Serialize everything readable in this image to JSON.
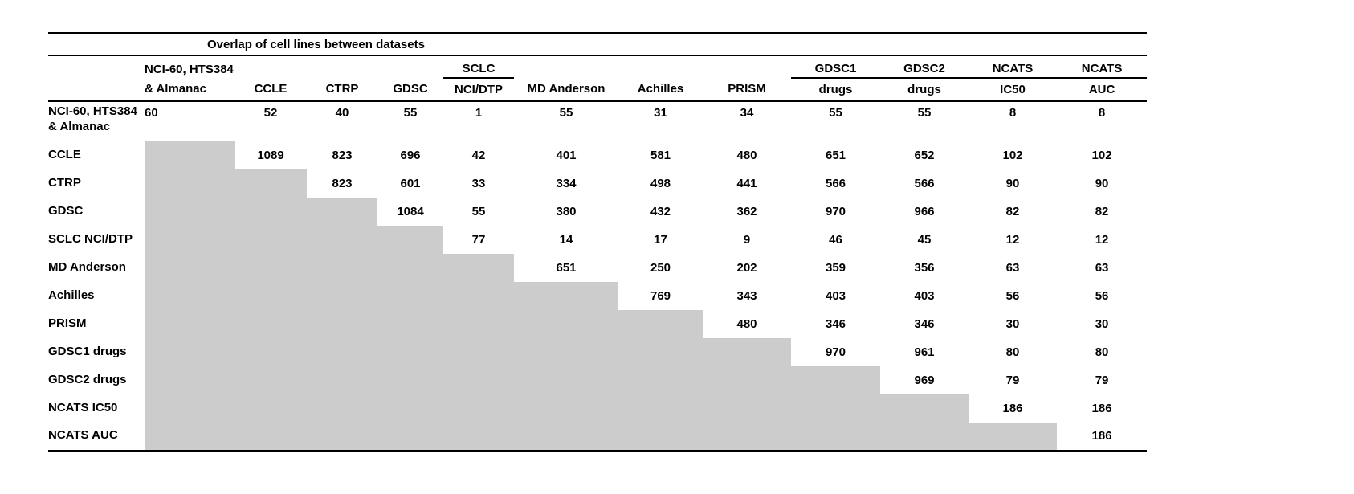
{
  "chart_data": {
    "type": "table",
    "title": "Overlap of cell lines between datasets",
    "column_group_headers": [
      {
        "text": "NCI-60, HTS384",
        "underline": false
      },
      {
        "text": "",
        "underline": false
      },
      {
        "text": "",
        "underline": false
      },
      {
        "text": "",
        "underline": false
      },
      {
        "text": "SCLC",
        "underline": true
      },
      {
        "text": "",
        "underline": false
      },
      {
        "text": "",
        "underline": false
      },
      {
        "text": "",
        "underline": false
      },
      {
        "text": "GDSC1",
        "underline": true
      },
      {
        "text": "GDSC2",
        "underline": true
      },
      {
        "text": "NCATS",
        "underline": true
      },
      {
        "text": "NCATS",
        "underline": true
      }
    ],
    "column_sub_headers": [
      "& Almanac",
      "CCLE",
      "CTRP",
      "GDSC",
      "NCI/DTP",
      "MD Anderson",
      "Achilles",
      "PRISM",
      "drugs",
      "drugs",
      "IC50",
      "AUC"
    ],
    "column_full_names": [
      "NCI-60, HTS384 & Almanac",
      "CCLE",
      "CTRP",
      "GDSC",
      "SCLC NCI/DTP",
      "MD Anderson",
      "Achilles",
      "PRISM",
      "GDSC1 drugs",
      "GDSC2 drugs",
      "NCATS IC50",
      "NCATS AUC"
    ],
    "row_labels": [
      "NCI-60, HTS384\n& Almanac",
      "CCLE",
      "CTRP",
      "GDSC",
      "SCLC NCI/DTP",
      "MD Anderson",
      "Achilles",
      "PRISM",
      "GDSC1 drugs",
      "GDSC2 drugs",
      "NCATS IC50",
      "NCATS AUC"
    ],
    "matrix": [
      [
        60,
        52,
        40,
        55,
        1,
        55,
        31,
        34,
        55,
        55,
        8,
        8
      ],
      [
        null,
        1089,
        823,
        696,
        42,
        401,
        581,
        480,
        651,
        652,
        102,
        102
      ],
      [
        null,
        null,
        823,
        601,
        33,
        334,
        498,
        441,
        566,
        566,
        90,
        90
      ],
      [
        null,
        null,
        null,
        1084,
        55,
        380,
        432,
        362,
        970,
        966,
        82,
        82
      ],
      [
        null,
        null,
        null,
        null,
        77,
        14,
        17,
        9,
        46,
        45,
        12,
        12
      ],
      [
        null,
        null,
        null,
        null,
        null,
        651,
        250,
        202,
        359,
        356,
        63,
        63
      ],
      [
        null,
        null,
        null,
        null,
        null,
        null,
        769,
        343,
        403,
        403,
        56,
        56
      ],
      [
        null,
        null,
        null,
        null,
        null,
        null,
        null,
        480,
        346,
        346,
        30,
        30
      ],
      [
        null,
        null,
        null,
        null,
        null,
        null,
        null,
        null,
        970,
        961,
        80,
        80
      ],
      [
        null,
        null,
        null,
        null,
        null,
        null,
        null,
        null,
        null,
        969,
        79,
        79
      ],
      [
        null,
        null,
        null,
        null,
        null,
        null,
        null,
        null,
        null,
        null,
        186,
        186
      ],
      [
        null,
        null,
        null,
        null,
        null,
        null,
        null,
        null,
        null,
        null,
        null,
        186
      ]
    ],
    "layout": {
      "shaded_region": "lower-triangle",
      "shade_color": "#cccccc",
      "rule_color": "#000000",
      "grid": "horizontal-rules-only",
      "legend": "none"
    }
  }
}
